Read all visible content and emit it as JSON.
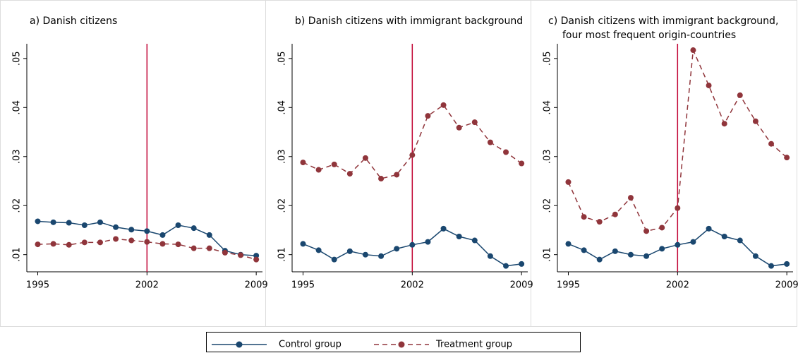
{
  "chart_data": [
    {
      "type": "line",
      "title": "a)  Danish citizens",
      "x": [
        1995,
        1996,
        1997,
        1998,
        1999,
        2000,
        2001,
        2002,
        2003,
        2004,
        2005,
        2006,
        2007,
        2008,
        2009
      ],
      "series": [
        {
          "color": "#1a476f",
          "dash": "solid",
          "values": [
            0.0168,
            0.0166,
            0.0165,
            0.016,
            0.0166,
            0.0156,
            0.0151,
            0.0148,
            0.014,
            0.016,
            0.0154,
            0.014,
            0.0108,
            0.01,
            0.0098
          ]
        },
        {
          "color": "#90353b",
          "dash": "dashed",
          "values": [
            0.0121,
            0.0122,
            0.012,
            0.0125,
            0.0125,
            0.0132,
            0.0129,
            0.0126,
            0.0122,
            0.0121,
            0.0113,
            0.0113,
            0.0104,
            0.0099,
            0.009
          ]
        }
      ],
      "xlim": [
        1994.3,
        2009.4
      ],
      "xticks": [
        1995,
        2002,
        2009
      ],
      "ylim": [
        0.0065,
        0.053
      ],
      "yticks": [
        {
          "value": 0.01,
          "label": ".01"
        },
        {
          "value": 0.02,
          "label": ".02"
        },
        {
          "value": 0.03,
          "label": ".03"
        },
        {
          "value": 0.04,
          "label": ".04"
        },
        {
          "value": 0.05,
          "label": ".05"
        }
      ],
      "vline": 2002,
      "vline_color": "#c10534"
    },
    {
      "type": "line",
      "title": "b)  Danish citizens with immigrant background",
      "x": [
        1995,
        1996,
        1997,
        1998,
        1999,
        2000,
        2001,
        2002,
        2003,
        2004,
        2005,
        2006,
        2007,
        2008,
        2009
      ],
      "series": [
        {
          "color": "#1a476f",
          "dash": "solid",
          "values": [
            0.0122,
            0.0109,
            0.009,
            0.0107,
            0.01,
            0.0097,
            0.0112,
            0.012,
            0.0126,
            0.0153,
            0.0137,
            0.0129,
            0.0097,
            0.0077,
            0.0081
          ]
        },
        {
          "color": "#90353b",
          "dash": "dashed",
          "values": [
            0.0288,
            0.0273,
            0.0284,
            0.0265,
            0.0297,
            0.0255,
            0.0263,
            0.0303,
            0.0383,
            0.0405,
            0.0359,
            0.037,
            0.0329,
            0.0309,
            0.0286
          ]
        }
      ],
      "xlim": [
        1994.3,
        2009.4
      ],
      "xticks": [
        1995,
        2002,
        2009
      ],
      "ylim": [
        0.0065,
        0.053
      ],
      "yticks": [
        {
          "value": 0.01,
          "label": ".01"
        },
        {
          "value": 0.02,
          "label": ".02"
        },
        {
          "value": 0.03,
          "label": ".03"
        },
        {
          "value": 0.04,
          "label": ".04"
        },
        {
          "value": 0.05,
          "label": ".05"
        }
      ],
      "vline": 2002,
      "vline_color": "#c10534"
    },
    {
      "type": "line",
      "title": "c) Danish citizens with immigrant background,",
      "subtitle": "four most frequent  origin-countries",
      "x": [
        1995,
        1996,
        1997,
        1998,
        1999,
        2000,
        2001,
        2002,
        2003,
        2004,
        2005,
        2006,
        2007,
        2008,
        2009
      ],
      "series": [
        {
          "color": "#1a476f",
          "dash": "solid",
          "values": [
            0.0122,
            0.0109,
            0.009,
            0.0107,
            0.01,
            0.0097,
            0.0112,
            0.012,
            0.0126,
            0.0153,
            0.0137,
            0.0129,
            0.0097,
            0.0077,
            0.0081
          ]
        },
        {
          "color": "#90353b",
          "dash": "dashed",
          "values": [
            0.0248,
            0.0177,
            0.0167,
            0.0182,
            0.0216,
            0.0148,
            0.0155,
            0.0195,
            0.0517,
            0.0445,
            0.0367,
            0.0425,
            0.0372,
            0.0326,
            0.0298
          ]
        }
      ],
      "xlim": [
        1994.3,
        2009.4
      ],
      "xticks": [
        1995,
        2002,
        2009
      ],
      "ylim": [
        0.0065,
        0.053
      ],
      "yticks": [
        {
          "value": 0.01,
          "label": ".01"
        },
        {
          "value": 0.02,
          "label": ".02"
        },
        {
          "value": 0.03,
          "label": ".03"
        },
        {
          "value": 0.04,
          "label": ".04"
        },
        {
          "value": 0.05,
          "label": ".05"
        }
      ],
      "vline": 2002,
      "vline_color": "#c10534"
    }
  ],
  "legend": [
    {
      "name": "Control group",
      "color": "#1a476f",
      "dash": "solid"
    },
    {
      "name": "Treatment group",
      "color": "#90353b",
      "dash": "dashed"
    }
  ]
}
